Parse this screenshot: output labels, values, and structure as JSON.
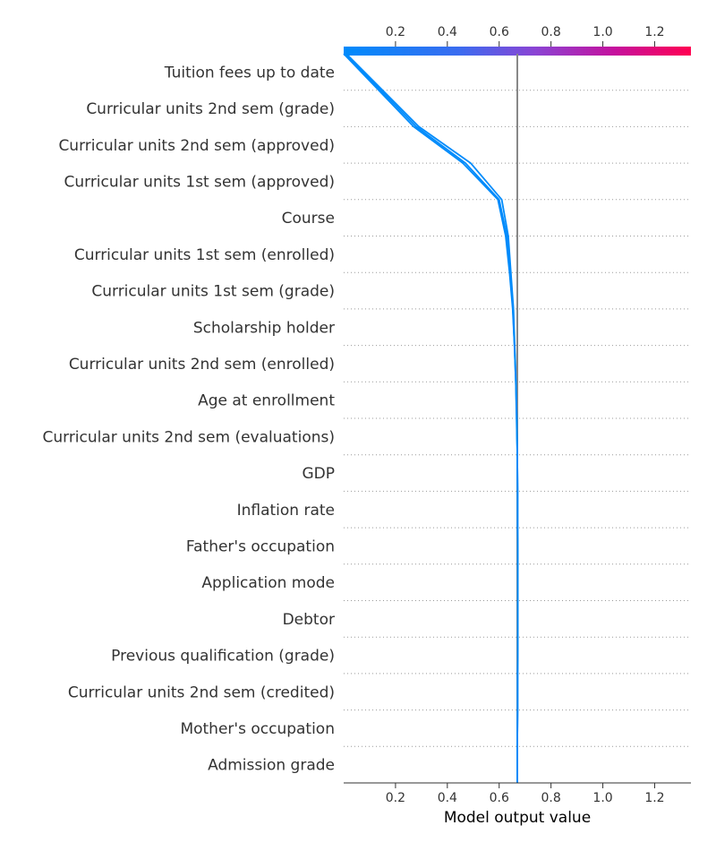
{
  "chart_data": {
    "type": "line",
    "subtype": "shap-decision-plot",
    "title": "",
    "xlabel": "Model output value",
    "ylabel": "",
    "xlim": [
      0.0,
      1.34
    ],
    "xticks": [
      "0.2",
      "0.4",
      "0.6",
      "0.8",
      "1.0",
      "1.2"
    ],
    "xtick_values": [
      0.2,
      0.4,
      0.6,
      0.8,
      1.0,
      1.2
    ],
    "base_value": 0.67,
    "colorbar": {
      "colors": [
        "#008bfb",
        "#8a44d4",
        "#c5119d",
        "#ff0052"
      ],
      "range": [
        0.0,
        1.34
      ]
    },
    "grid": "dotted horizontal",
    "features": [
      "Tuition fees up to date",
      "Curricular units 2nd sem (grade)",
      "Curricular units 2nd sem (approved)",
      "Curricular units 1st sem (approved)",
      "Course",
      "Curricular units 1st sem (enrolled)",
      "Curricular units 1st sem (grade)",
      "Scholarship holder",
      "Curricular units 2nd sem (enrolled)",
      "Age at enrollment",
      "Curricular units 2nd sem (evaluations)",
      "GDP",
      "Inflation rate",
      "Father's occupation",
      "Application mode",
      "Debtor",
      "Previous qualification (grade)",
      "Curricular units 2nd sem (credited)",
      "Mother's occupation",
      "Admission grade"
    ],
    "series": [
      {
        "color": "#008bfb",
        "values": [
          0.67,
          0.67,
          0.671,
          0.671,
          0.672,
          0.672,
          0.672,
          0.671,
          0.671,
          0.67,
          0.668,
          0.665,
          0.66,
          0.655,
          0.645,
          0.635,
          0.61,
          0.49,
          0.29,
          0.01
        ]
      },
      {
        "color": "#008bfb",
        "values": [
          0.67,
          0.67,
          0.671,
          0.671,
          0.672,
          0.672,
          0.672,
          0.671,
          0.671,
          0.67,
          0.668,
          0.664,
          0.659,
          0.652,
          0.64,
          0.625,
          0.595,
          0.46,
          0.27,
          0.0
        ]
      },
      {
        "color": "#008bfb",
        "values": [
          0.67,
          0.67,
          0.671,
          0.671,
          0.672,
          0.672,
          0.672,
          0.671,
          0.671,
          0.67,
          0.667,
          0.664,
          0.659,
          0.653,
          0.642,
          0.63,
          0.6,
          0.47,
          0.28,
          0.005
        ]
      }
    ]
  }
}
